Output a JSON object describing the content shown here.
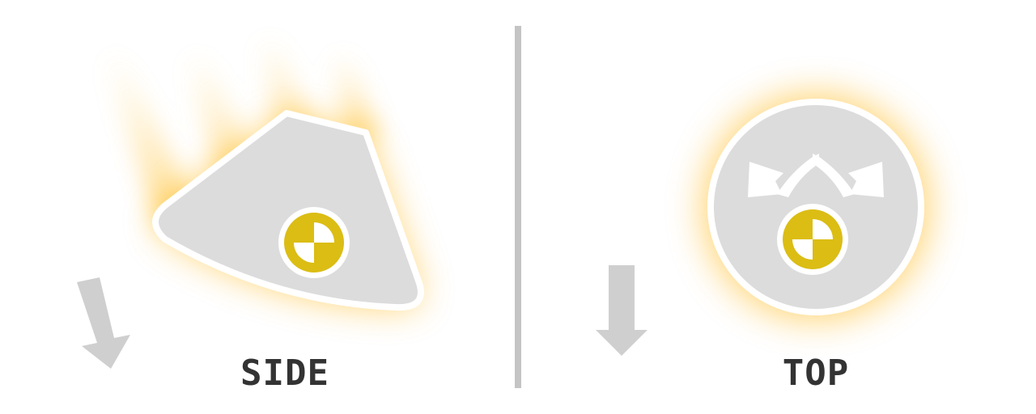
{
  "panels": {
    "side": {
      "label": "SIDE"
    },
    "top": {
      "label": "TOP"
    }
  },
  "icons": {
    "side_arrow": "arrow-down-tilted-icon",
    "top_arrow": "arrow-down-icon",
    "rotate_arrows": "rotate-arrows-icon",
    "center_of_mass": "center-of-mass-icon"
  },
  "colors": {
    "body_fill": "#dcdcdc",
    "body_stroke": "#ffffff",
    "glow": "#ffb000",
    "marker": "#dbbd14",
    "arrow": "#cfcfcf",
    "divider": "#c4c4c4",
    "label": "#333333"
  }
}
